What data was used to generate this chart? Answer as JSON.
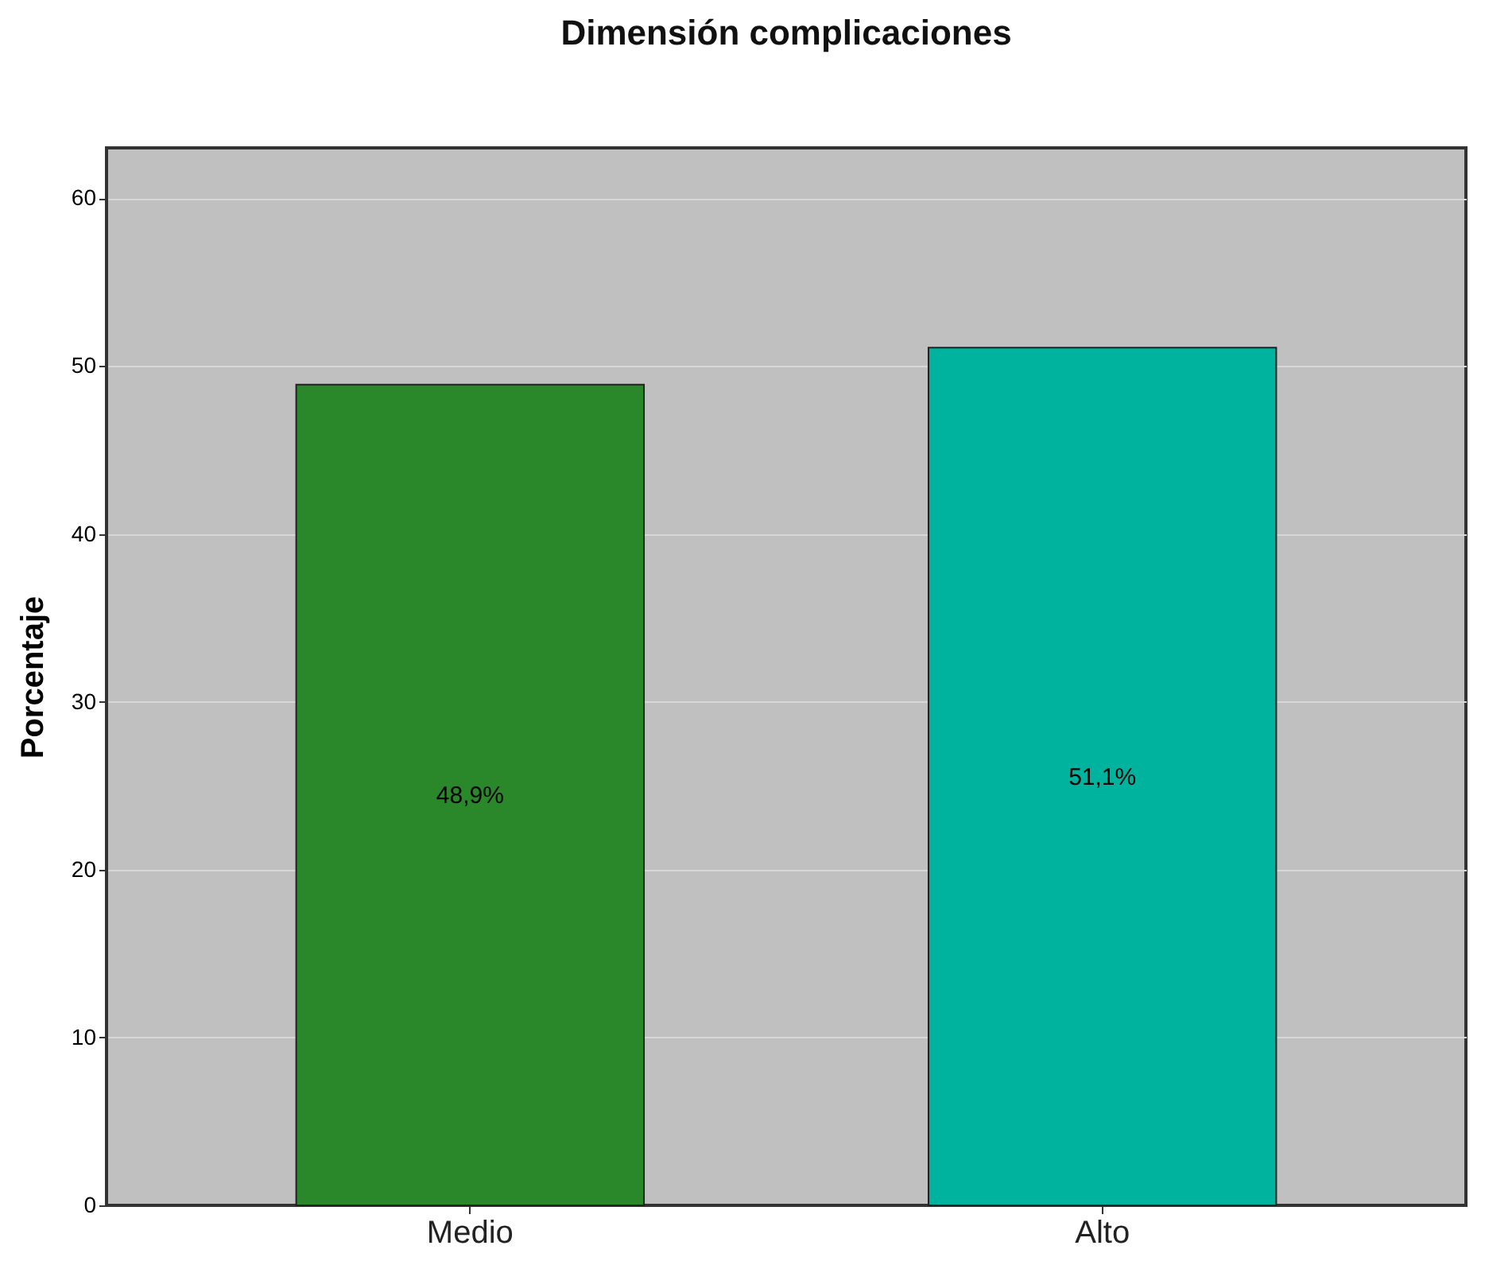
{
  "chart_data": {
    "type": "bar",
    "title": "Dimensión complicaciones",
    "ylabel": "Porcentaje",
    "categories": [
      "Medio",
      "Alto"
    ],
    "values": [
      48.9,
      51.1
    ],
    "colors": [
      "#2a872a",
      "#00b39f"
    ],
    "value_labels": [
      "48,9%",
      "51,1%"
    ],
    "ylim": [
      0,
      63
    ],
    "yticks": [
      0,
      10,
      20,
      30,
      40,
      50,
      60
    ],
    "grid": "y",
    "legend": false
  }
}
